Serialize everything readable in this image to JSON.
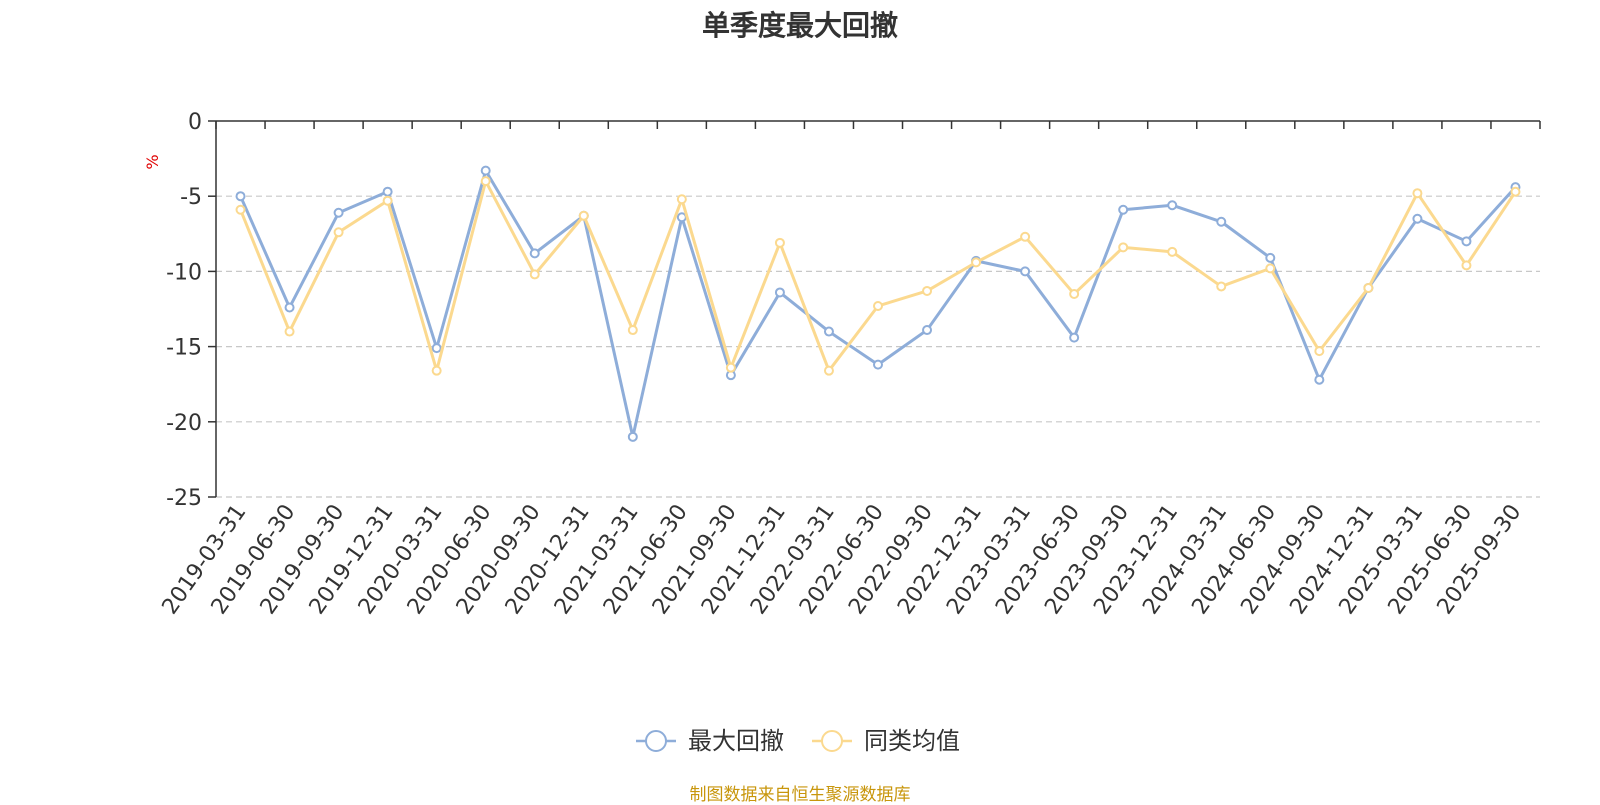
{
  "chart_data": {
    "type": "line",
    "title": "单季度最大回撤",
    "ylabel": "%",
    "ylim": [
      -25,
      0
    ],
    "yticks": [
      0,
      -5,
      -10,
      -15,
      -20,
      -25
    ],
    "grid": true,
    "legend_position": "bottom",
    "categories": [
      "2019-03-31",
      "2019-06-30",
      "2019-09-30",
      "2019-12-31",
      "2020-03-31",
      "2020-06-30",
      "2020-09-30",
      "2020-12-31",
      "2021-03-31",
      "2021-06-30",
      "2021-09-30",
      "2021-12-31",
      "2022-03-31",
      "2022-06-30",
      "2022-09-30",
      "2022-12-31",
      "2023-03-31",
      "2023-06-30",
      "2023-09-30",
      "2023-12-31",
      "2024-03-31",
      "2024-06-30",
      "2024-09-30",
      "2024-12-31",
      "2025-03-31",
      "2025-06-30",
      "2025-09-30"
    ],
    "series": [
      {
        "name": "最大回撤",
        "color": "#8eadd9",
        "values": [
          -5.0,
          -12.4,
          -6.1,
          -4.7,
          -15.1,
          -3.3,
          -8.8,
          -6.3,
          -21.0,
          -6.4,
          -16.9,
          -11.4,
          -14.0,
          -16.2,
          -13.9,
          -9.3,
          -10.0,
          -14.4,
          -5.9,
          -5.6,
          -6.7,
          -9.1,
          -17.2,
          -11.1,
          -6.5,
          -8.0,
          -4.4
        ]
      },
      {
        "name": "同类均值",
        "color": "#fbd98f",
        "values": [
          -5.9,
          -14.0,
          -7.4,
          -5.3,
          -16.6,
          -4.0,
          -10.2,
          -6.3,
          -13.9,
          -5.2,
          -16.4,
          -8.1,
          -16.6,
          -12.3,
          -11.3,
          -9.4,
          -7.7,
          -11.5,
          -8.4,
          -8.7,
          -11.0,
          -9.8,
          -15.3,
          -11.1,
          -4.8,
          -9.6,
          -4.7
        ]
      }
    ]
  },
  "source_note": "制图数据来自恒生聚源数据库"
}
